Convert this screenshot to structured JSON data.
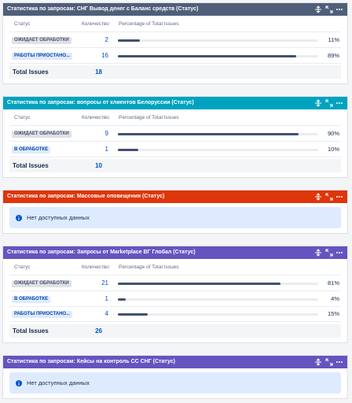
{
  "gadgets": [
    {
      "title": "Статистика по запросам: СНГ Вывод денег с Баланс средств (Статус)",
      "color": "#505f79",
      "columns": [
        "Статус",
        "Количество",
        "Percentage of Total Issues"
      ],
      "rows": [
        {
          "status": "ОЖИДАЕТ ОБРАБОТКИ",
          "status_color": "#dfe1e6",
          "count": 2,
          "percent": 11,
          "percent_label": "11%"
        },
        {
          "status": "РАБОТЫ ПРИОСТАНО...",
          "status_color": "#deebff",
          "count": 16,
          "percent": 89,
          "percent_label": "89%"
        }
      ],
      "total_label": "Total Issues",
      "total": 18
    },
    {
      "title": "Статистика по запросам: вопросы от клиентов Белоруссии (Статус)",
      "color": "#00a3bf",
      "columns": [
        "Статус",
        "Количество",
        "Percentage of Total Issues"
      ],
      "rows": [
        {
          "status": "ОЖИДАЕТ ОБРАБОТКИ",
          "status_color": "#dfe1e6",
          "count": 9,
          "percent": 90,
          "percent_label": "90%"
        },
        {
          "status": "В ОБРАБОТКЕ",
          "status_color": "#deebff",
          "count": 1,
          "percent": 10,
          "percent_label": "10%"
        }
      ],
      "total_label": "Total Issues",
      "total": 10
    },
    {
      "title": "Статистика по запросам: Массовые оповещения (Статус)",
      "color": "#de350b",
      "message": "Нет доступных данных"
    },
    {
      "title": "Статистика по запросам: Запросы от Marketplace BГ Глобал (Статус)",
      "color": "#6554c0",
      "columns": [
        "Статус",
        "Количество",
        "Percentage of Total Issues"
      ],
      "rows": [
        {
          "status": "ОЖИДАЕТ ОБРАБОТКИ",
          "status_color": "#dfe1e6",
          "count": 21,
          "percent": 81,
          "percent_label": "81%"
        },
        {
          "status": "В ОБРАБОТКЕ",
          "status_color": "#deebff",
          "count": 1,
          "percent": 4,
          "percent_label": "4%"
        },
        {
          "status": "РАБОТЫ ПРИОСТАНО...",
          "status_color": "#deebff",
          "count": 4,
          "percent": 15,
          "percent_label": "15%"
        }
      ],
      "total_label": "Total Issues",
      "total": 26
    },
    {
      "title": "Статистика по запросам: Кейсы на контроль СС СНГ (Статус)",
      "color": "#6554c0",
      "message": "Нет доступных данных"
    }
  ]
}
